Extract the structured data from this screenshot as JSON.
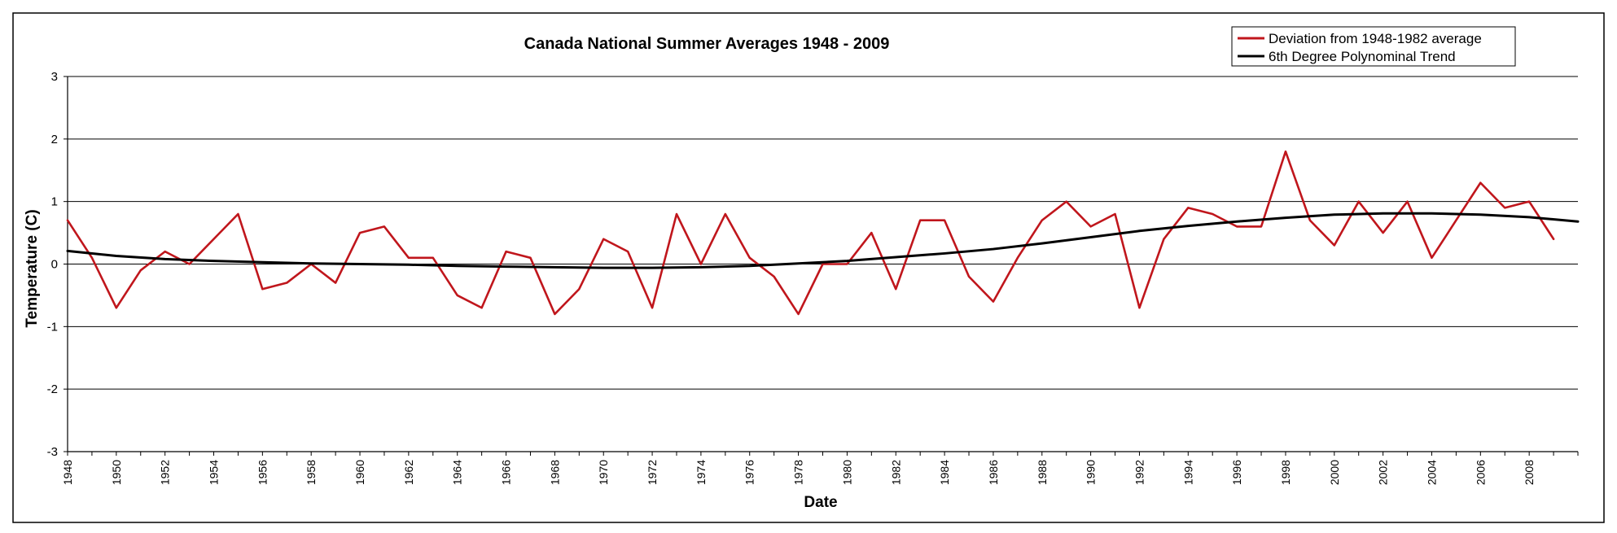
{
  "chart_data": {
    "type": "line",
    "title": "Canada National Summer Averages 1948 - 2009",
    "xlabel": "Date",
    "ylabel": "Temperature (C)",
    "ylim": [
      -3,
      3
    ],
    "yticks": [
      "3",
      "2",
      "1",
      "0",
      "-1",
      "-2",
      "-3"
    ],
    "xlim": [
      1948,
      2010
    ],
    "xticks": [
      "1948",
      "1950",
      "1952",
      "1954",
      "1956",
      "1958",
      "1960",
      "1962",
      "1964",
      "1966",
      "1968",
      "1970",
      "1972",
      "1974",
      "1976",
      "1978",
      "1980",
      "1982",
      "1984",
      "1986",
      "1988",
      "1990",
      "1992",
      "1994",
      "1996",
      "1998",
      "2000",
      "2002",
      "2004",
      "2006",
      "2008"
    ],
    "grid": true,
    "legend_position": "top-right",
    "series": [
      {
        "name": "Deviation from 1948-1982 average",
        "color": "#c0161c",
        "x": [
          1948,
          1949,
          1950,
          1951,
          1952,
          1953,
          1954,
          1955,
          1956,
          1957,
          1958,
          1959,
          1960,
          1961,
          1962,
          1963,
          1964,
          1965,
          1966,
          1967,
          1968,
          1969,
          1970,
          1971,
          1972,
          1973,
          1974,
          1975,
          1976,
          1977,
          1978,
          1979,
          1980,
          1981,
          1982,
          1983,
          1984,
          1985,
          1986,
          1987,
          1988,
          1989,
          1990,
          1991,
          1992,
          1993,
          1994,
          1995,
          1996,
          1997,
          1998,
          1999,
          2000,
          2001,
          2002,
          2003,
          2004,
          2005,
          2006,
          2007,
          2008,
          2009
        ],
        "values": [
          0.7,
          0.1,
          -0.7,
          -0.1,
          0.2,
          0.0,
          0.4,
          0.8,
          -0.4,
          -0.3,
          0.0,
          -0.3,
          0.5,
          0.6,
          0.1,
          0.1,
          -0.5,
          -0.7,
          0.2,
          0.1,
          -0.8,
          -0.4,
          0.4,
          0.2,
          -0.7,
          0.8,
          0.0,
          0.8,
          0.1,
          -0.2,
          -0.8,
          0.0,
          0.0,
          0.5,
          -0.4,
          0.7,
          0.7,
          -0.2,
          -0.6,
          0.1,
          0.7,
          1.0,
          0.6,
          0.8,
          -0.7,
          0.4,
          0.9,
          0.8,
          0.6,
          0.6,
          1.8,
          0.7,
          0.3,
          1.0,
          0.5,
          1.0,
          0.1,
          0.7,
          1.3,
          0.9,
          1.0,
          0.4
        ]
      },
      {
        "name": "6th Degree Polynominal Trend",
        "color": "#000000",
        "x": [
          1948,
          1950,
          1952,
          1954,
          1956,
          1958,
          1960,
          1962,
          1964,
          1966,
          1968,
          1970,
          1972,
          1974,
          1976,
          1978,
          1980,
          1982,
          1984,
          1986,
          1988,
          1990,
          1992,
          1994,
          1996,
          1998,
          2000,
          2002,
          2004,
          2006,
          2008,
          2010
        ],
        "values": [
          0.21,
          0.13,
          0.08,
          0.05,
          0.03,
          0.01,
          0.0,
          -0.01,
          -0.03,
          -0.04,
          -0.05,
          -0.06,
          -0.06,
          -0.05,
          -0.03,
          0.01,
          0.05,
          0.11,
          0.17,
          0.24,
          0.33,
          0.43,
          0.53,
          0.61,
          0.68,
          0.74,
          0.79,
          0.81,
          0.81,
          0.79,
          0.75,
          0.68
        ]
      }
    ]
  }
}
